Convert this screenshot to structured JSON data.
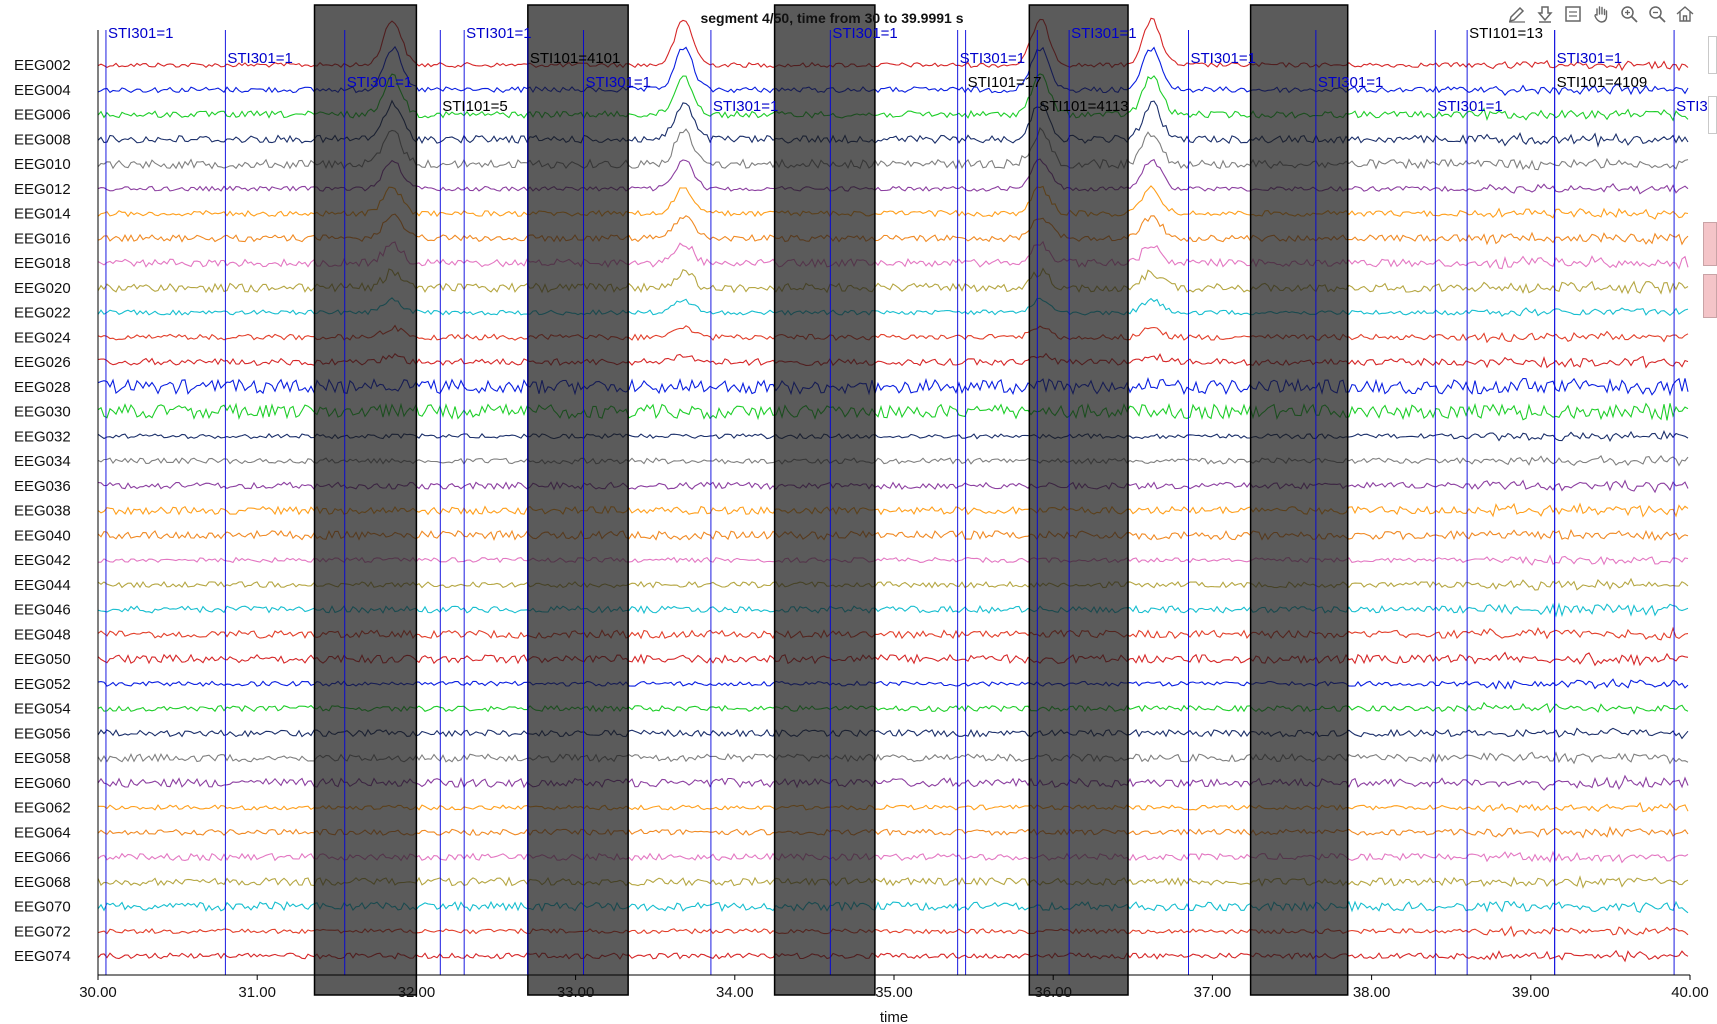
{
  "chart_data": {
    "type": "line",
    "title": "segment 4/50, time from 30 to 39.9991 s",
    "xlabel": "time",
    "ylabel": "",
    "xlim": [
      30,
      40
    ],
    "x_ticks": [
      "30.00",
      "31.00",
      "32.00",
      "33.00",
      "34.00",
      "35.00",
      "36.00",
      "37.00",
      "38.00",
      "39.00",
      "40.00"
    ],
    "channels": [
      "EEG002",
      "EEG004",
      "EEG006",
      "EEG008",
      "EEG010",
      "EEG012",
      "EEG014",
      "EEG016",
      "EEG018",
      "EEG020",
      "EEG022",
      "EEG024",
      "EEG026",
      "EEG028",
      "EEG030",
      "EEG032",
      "EEG034",
      "EEG036",
      "EEG038",
      "EEG040",
      "EEG042",
      "EEG044",
      "EEG046",
      "EEG048",
      "EEG050",
      "EEG052",
      "EEG054",
      "EEG056",
      "EEG058",
      "EEG060",
      "EEG062",
      "EEG064",
      "EEG066",
      "EEG068",
      "EEG070",
      "EEG072",
      "EEG074"
    ],
    "shaded_intervals": [
      [
        31.36,
        32.0
      ],
      [
        32.7,
        33.33
      ],
      [
        34.25,
        34.88
      ],
      [
        35.85,
        36.47
      ],
      [
        37.24,
        37.85
      ]
    ],
    "markers": [
      {
        "t": 30.05,
        "label": "STI301=1"
      },
      {
        "t": 30.8,
        "label": "STI301=1"
      },
      {
        "t": 31.55,
        "label": "STI301=1"
      },
      {
        "t": 32.15,
        "label": "STI101=5"
      },
      {
        "t": 32.3,
        "label": "STI301=1"
      },
      {
        "t": 32.7,
        "label": "STI101=4101"
      },
      {
        "t": 33.05,
        "label": "STI301=1"
      },
      {
        "t": 33.85,
        "label": "STI301=1"
      },
      {
        "t": 34.6,
        "label": "STI301=1"
      },
      {
        "t": 35.4,
        "label": "STI301=1"
      },
      {
        "t": 35.45,
        "label": "STI101=17"
      },
      {
        "t": 35.9,
        "label": "STI101=4113"
      },
      {
        "t": 36.1,
        "label": "STI301=1"
      },
      {
        "t": 36.85,
        "label": "STI301=1"
      },
      {
        "t": 37.65,
        "label": "STI301=1"
      },
      {
        "t": 38.4,
        "label": "STI301=1"
      },
      {
        "t": 38.6,
        "label": "STI101=13"
      },
      {
        "t": 39.15,
        "label": "STI301=1"
      },
      {
        "t": 39.15,
        "label": "STI101=4109"
      },
      {
        "t": 39.9,
        "label": "STI3"
      }
    ],
    "grid": false,
    "legend": "none"
  },
  "colors": {
    "shade": "#1c1c1c",
    "marker": "#0000dd",
    "marker_label_sti301": "#0000cc",
    "marker_label_sti101": "#000000",
    "palette": [
      "#d62728",
      "#0a1fe0",
      "#1fce2a",
      "#1b2f6a",
      "#7f7f7f",
      "#8c3fa0",
      "#ff9f1c",
      "#f08a24",
      "#e377c2",
      "#b5a642",
      "#17becf",
      "#e23f2a"
    ]
  },
  "toolbar": {
    "icons": [
      "edit-axis-icon",
      "save-figure-icon",
      "configure-subplots-icon",
      "pan-icon",
      "zoom-in-icon",
      "zoom-out-icon",
      "home-icon"
    ]
  }
}
